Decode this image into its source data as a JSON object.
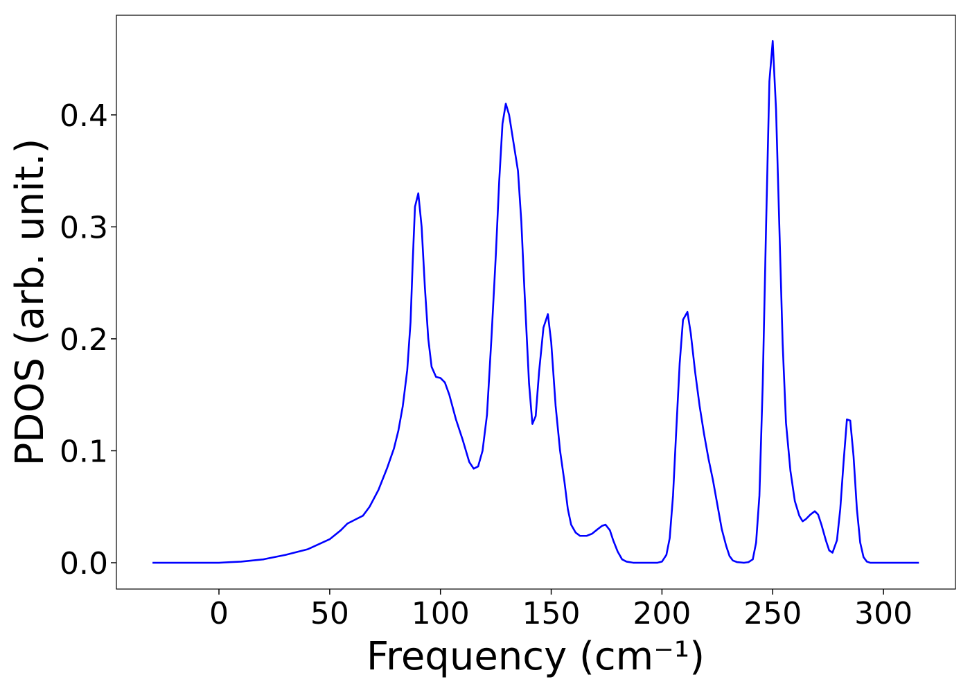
{
  "chart_data": {
    "type": "line",
    "xlabel": "Frequency (cm⁻¹)",
    "ylabel": "PDOS (arb. unit.)",
    "color": "#0000ff",
    "x": [
      -30,
      0,
      5,
      10,
      20,
      30,
      40,
      50,
      55,
      58,
      62,
      65,
      68,
      72,
      76,
      79,
      81,
      83,
      85,
      86.5,
      87.5,
      88.5,
      90,
      91.5,
      93,
      94.5,
      96,
      98,
      100,
      102,
      104,
      107,
      110,
      113,
      115,
      117,
      119,
      121,
      123,
      125,
      126.5,
      128,
      129.5,
      131,
      133,
      135,
      136.5,
      138,
      140,
      141.5,
      143,
      144.5,
      146.5,
      148.5,
      150,
      152,
      154,
      156,
      157.5,
      159,
      161,
      163,
      166,
      168.5,
      171,
      173,
      174.5,
      176.5,
      178,
      180,
      182,
      184,
      187,
      198,
      200,
      202,
      203.5,
      205,
      206.5,
      208,
      209.5,
      211.5,
      213,
      215,
      217,
      219,
      221,
      223,
      225,
      227,
      229,
      230.5,
      232,
      234,
      237,
      239,
      241,
      242.5,
      244,
      245.5,
      247,
      248.5,
      250,
      251.5,
      253,
      254.5,
      256,
      258,
      260,
      262,
      263.5,
      265,
      267,
      269,
      270.5,
      272,
      274,
      275.5,
      277,
      279,
      280.5,
      282,
      283.5,
      285,
      286.5,
      288,
      289.5,
      291,
      292.5,
      294,
      316
    ],
    "values": [
      0,
      0,
      0.0005,
      0.001,
      0.003,
      0.007,
      0.012,
      0.021,
      0.029,
      0.035,
      0.039,
      0.042,
      0.05,
      0.065,
      0.085,
      0.102,
      0.118,
      0.14,
      0.172,
      0.215,
      0.27,
      0.318,
      0.33,
      0.3,
      0.245,
      0.2,
      0.175,
      0.166,
      0.165,
      0.161,
      0.15,
      0.128,
      0.11,
      0.09,
      0.084,
      0.086,
      0.1,
      0.132,
      0.2,
      0.275,
      0.34,
      0.392,
      0.41,
      0.4,
      0.375,
      0.35,
      0.305,
      0.24,
      0.16,
      0.124,
      0.131,
      0.17,
      0.21,
      0.222,
      0.197,
      0.14,
      0.1,
      0.072,
      0.048,
      0.034,
      0.027,
      0.024,
      0.024,
      0.026,
      0.03,
      0.033,
      0.034,
      0.029,
      0.02,
      0.01,
      0.003,
      0.001,
      0,
      0,
      0.001,
      0.007,
      0.022,
      0.06,
      0.12,
      0.178,
      0.217,
      0.224,
      0.205,
      0.17,
      0.14,
      0.115,
      0.093,
      0.074,
      0.052,
      0.03,
      0.015,
      0.006,
      0.002,
      0.0005,
      0,
      0.0005,
      0.003,
      0.018,
      0.06,
      0.16,
      0.3,
      0.43,
      0.466,
      0.405,
      0.3,
      0.195,
      0.125,
      0.082,
      0.055,
      0.042,
      0.037,
      0.039,
      0.043,
      0.046,
      0.043,
      0.034,
      0.02,
      0.011,
      0.009,
      0.02,
      0.048,
      0.09,
      0.128,
      0.127,
      0.095,
      0.048,
      0.018,
      0.005,
      0.001,
      0,
      0
    ],
    "xlim": [
      -46.3,
      332.5
    ],
    "ylim": [
      -0.0235,
      0.489
    ],
    "xticks": [
      0,
      50,
      100,
      150,
      200,
      250,
      300
    ],
    "yticks": [
      {
        "value": 0,
        "label": "0.0"
      },
      0.1,
      0.2,
      0.3,
      0.4
    ],
    "grid": false
  }
}
